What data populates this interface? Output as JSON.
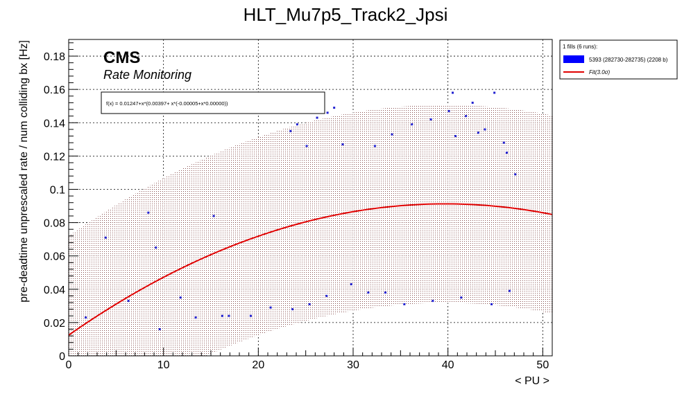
{
  "chart_data": {
    "type": "scatter",
    "title": "HLT_Mu7p5_Track2_Jpsi",
    "xlabel": "< PU >",
    "ylabel": "pre-deadtime unprescaled rate / num colliding bx [Hz]",
    "xlim": [
      0,
      51
    ],
    "ylim": [
      0,
      0.19
    ],
    "x_ticks": [
      "0",
      "10",
      "20",
      "30",
      "40",
      "50"
    ],
    "y_ticks": [
      "0",
      "0.02",
      "0.04",
      "0.06",
      "0.08",
      "0.1",
      "0.12",
      "0.14",
      "0.16",
      "0.18"
    ],
    "grid": true,
    "legend_position": "outside-top-right",
    "annotations": {
      "cms": "CMS",
      "rate_monitoring": "Rate Monitoring",
      "fit_formula": "f(x) = 0.01247+x*(0.00397+ x*(-0.00005+x*0.00000))"
    },
    "legend": {
      "header": "1 fills (6 runs):",
      "data_entry": "5393 (282730-282735) (2208 b)",
      "fit_entry": "Fit(3.0σ)"
    },
    "fit": {
      "coefficients": [
        0.01247,
        0.00397,
        -5e-05,
        0.0
      ],
      "band_sigma": 3.0,
      "band_halfwidth": 0.0595,
      "x_range": [
        0,
        51
      ]
    },
    "series": [
      {
        "name": "5393 (282730-282735) (2208 b)",
        "points": [
          [
            1.8,
            0.023
          ],
          [
            3.9,
            0.071
          ],
          [
            6.3,
            0.033
          ],
          [
            8.4,
            0.086
          ],
          [
            9.2,
            0.065
          ],
          [
            9.6,
            0.016
          ],
          [
            11.8,
            0.035
          ],
          [
            13.4,
            0.023
          ],
          [
            15.3,
            0.084
          ],
          [
            16.2,
            0.024
          ],
          [
            16.9,
            0.024
          ],
          [
            22.0,
            0.146
          ],
          [
            23.4,
            0.135
          ],
          [
            24.1,
            0.139
          ],
          [
            25.1,
            0.126
          ],
          [
            26.2,
            0.143
          ],
          [
            27.3,
            0.146
          ],
          [
            28.0,
            0.149
          ],
          [
            28.9,
            0.127
          ],
          [
            32.3,
            0.126
          ],
          [
            34.1,
            0.133
          ],
          [
            36.2,
            0.139
          ],
          [
            38.2,
            0.142
          ],
          [
            40.1,
            0.147
          ],
          [
            40.8,
            0.132
          ],
          [
            41.9,
            0.144
          ],
          [
            43.2,
            0.134
          ],
          [
            43.9,
            0.136
          ],
          [
            44.9,
            0.158
          ],
          [
            45.9,
            0.128
          ],
          [
            46.2,
            0.122
          ],
          [
            47.1,
            0.109
          ],
          [
            40.5,
            0.158
          ],
          [
            42.6,
            0.152
          ],
          [
            29.8,
            0.043
          ],
          [
            31.6,
            0.038
          ],
          [
            33.4,
            0.038
          ],
          [
            35.4,
            0.031
          ],
          [
            38.4,
            0.033
          ],
          [
            41.4,
            0.035
          ],
          [
            44.6,
            0.031
          ],
          [
            46.5,
            0.039
          ],
          [
            19.2,
            0.024
          ],
          [
            21.3,
            0.029
          ],
          [
            23.6,
            0.028
          ],
          [
            25.4,
            0.031
          ],
          [
            27.2,
            0.036
          ]
        ]
      }
    ]
  }
}
